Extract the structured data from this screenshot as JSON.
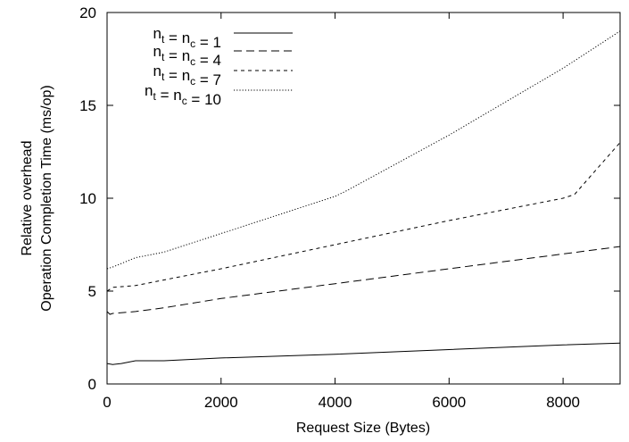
{
  "chart_data": {
    "type": "line",
    "xlabel": "Request Size (Bytes)",
    "ylabel_lines": [
      "Relative overhead",
      "Operation Completion Time (ms/op)"
    ],
    "xlim": [
      0,
      9000
    ],
    "ylim": [
      0,
      20
    ],
    "xticks": [
      0,
      2000,
      4000,
      6000,
      8000
    ],
    "yticks": [
      0,
      5,
      10,
      15,
      20
    ],
    "grid": false,
    "legend_position": "top-left",
    "series": [
      {
        "name": {
          "t": "n",
          "ts": "t",
          "eq": " = ",
          "c": "n",
          "cs": "c",
          "val": " = 1"
        },
        "dash": "solid",
        "x": [
          0,
          100,
          250,
          500,
          1000,
          2000,
          4000,
          6000,
          8000,
          9000
        ],
        "y": [
          1.1,
          1.05,
          1.1,
          1.25,
          1.25,
          1.4,
          1.6,
          1.85,
          2.1,
          2.2
        ]
      },
      {
        "name": {
          "t": "n",
          "ts": "t",
          "eq": " = ",
          "c": "n",
          "cs": "c",
          "val": " = 4"
        },
        "dash": "long-dash",
        "x": [
          0,
          50,
          100,
          500,
          1000,
          2000,
          4000,
          6000,
          8000,
          9000
        ],
        "y": [
          3.9,
          3.75,
          3.8,
          3.9,
          4.1,
          4.6,
          5.4,
          6.2,
          7.0,
          7.4
        ]
      },
      {
        "name": {
          "t": "n",
          "ts": "t",
          "eq": " = ",
          "c": "n",
          "cs": "c",
          "val": " = 7"
        },
        "dash": "short-dash",
        "x": [
          0,
          100,
          500,
          1000,
          2000,
          4000,
          6000,
          8000,
          8200,
          9000
        ],
        "y": [
          5.0,
          5.2,
          5.3,
          5.6,
          6.2,
          7.5,
          8.8,
          10.0,
          10.2,
          13.0
        ]
      },
      {
        "name": {
          "t": "n",
          "ts": "t",
          "eq": " = ",
          "c": "n",
          "cs": "c",
          "val": " = 10"
        },
        "dash": "dotted",
        "x": [
          0,
          100,
          500,
          1000,
          2000,
          4000,
          4200,
          6000,
          8000,
          9000
        ],
        "y": [
          6.2,
          6.3,
          6.8,
          7.1,
          8.1,
          10.1,
          10.4,
          13.4,
          17.0,
          19.0
        ]
      }
    ]
  }
}
